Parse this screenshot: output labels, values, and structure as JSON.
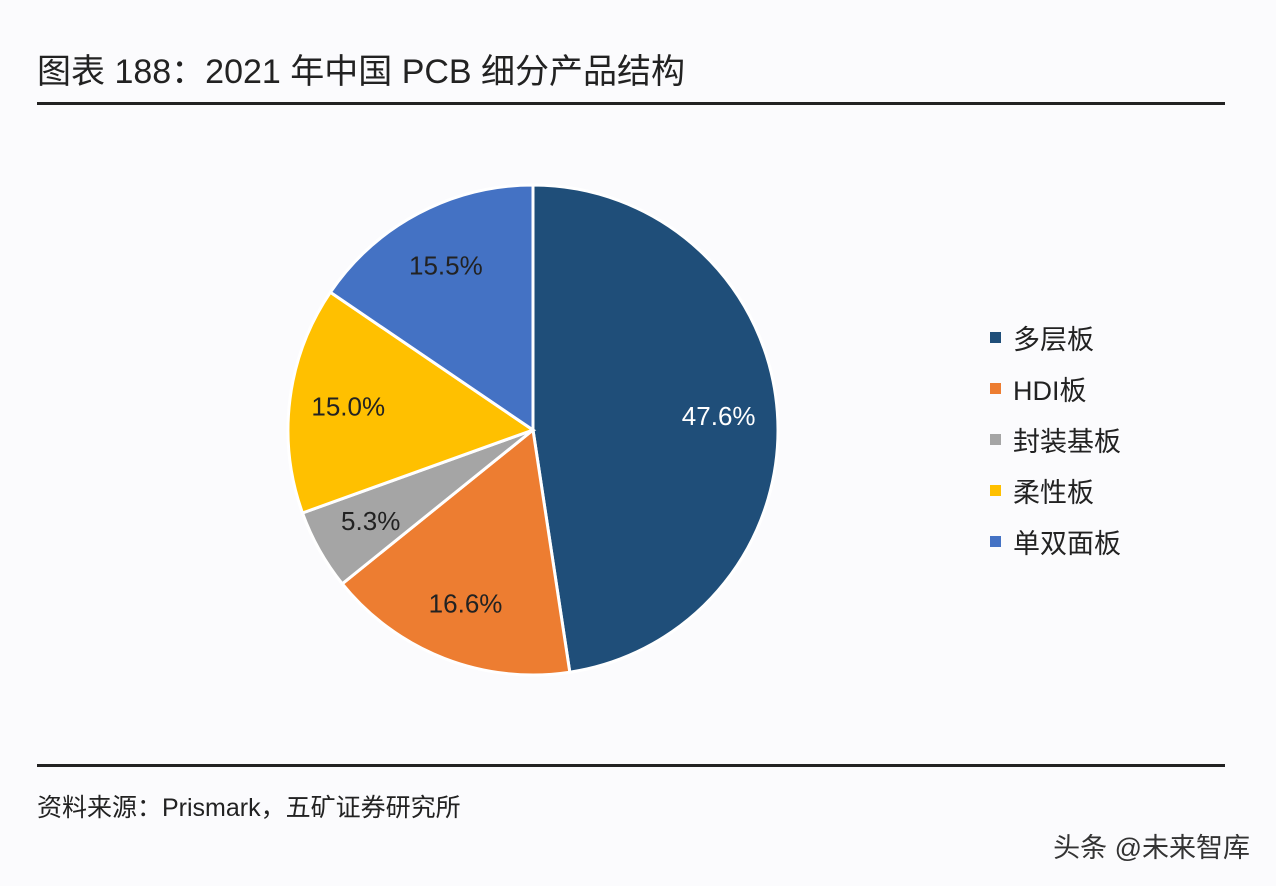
{
  "title": "图表 188：2021 年中国 PCB 细分产品结构",
  "source": "资料来源：Prismark，五矿证券研究所",
  "watermark": "头条 @未来智库",
  "chart_data": {
    "type": "pie",
    "title": "图表 188：2021 年中国 PCB 细分产品结构",
    "categories": [
      "多层板",
      "HDI板",
      "封装基板",
      "柔性板",
      "单双面板"
    ],
    "values": [
      47.6,
      16.6,
      5.3,
      15.0,
      15.5
    ],
    "labels": [
      "47.6%",
      "16.6%",
      "5.3%",
      "15.0%",
      "15.5%"
    ],
    "colors": [
      "#1f4e79",
      "#ed7d31",
      "#a5a5a5",
      "#ffc000",
      "#4472c4"
    ],
    "label_colors": [
      "#ffffff",
      "#222222",
      "#222222",
      "#222222",
      "#222222"
    ],
    "start": "top",
    "direction": "clockwise",
    "legend_position": "right"
  }
}
